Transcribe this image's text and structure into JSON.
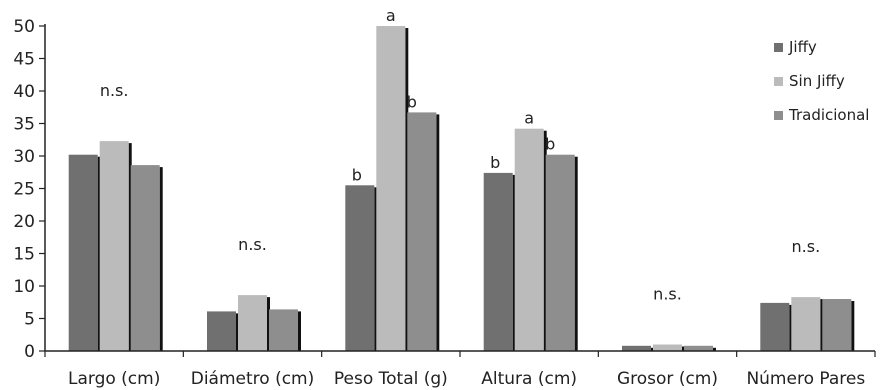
{
  "chart_data": {
    "type": "bar",
    "categories": [
      "Largo (cm)",
      "Diámetro (cm)",
      "Peso Total (g)",
      "Altura (cm)",
      "Grosor (cm)",
      "Número Pares"
    ],
    "series": [
      {
        "name": "Jiffy",
        "values": [
          30.2,
          6.1,
          25.5,
          27.4,
          0.8,
          7.4
        ],
        "color": "#707070"
      },
      {
        "name": "Sin Jiffy",
        "values": [
          32.3,
          8.6,
          50.0,
          34.2,
          1.0,
          8.3
        ],
        "color": "#bbbbbb"
      },
      {
        "name": "Tradicional",
        "values": [
          28.6,
          6.4,
          36.7,
          30.2,
          0.8,
          8.0
        ],
        "color": "#8e8e8e"
      }
    ],
    "annotations": [
      {
        "category": 0,
        "text": "n.s."
      },
      {
        "category": 1,
        "text": "n.s."
      },
      {
        "category": 2,
        "series": 0,
        "text": "b"
      },
      {
        "category": 2,
        "series": 1,
        "text": "a"
      },
      {
        "category": 2,
        "series": 2,
        "text": "b"
      },
      {
        "category": 3,
        "series": 0,
        "text": "b"
      },
      {
        "category": 3,
        "series": 1,
        "text": "a"
      },
      {
        "category": 3,
        "series": 2,
        "text": "b"
      },
      {
        "category": 4,
        "text": "n.s."
      },
      {
        "category": 5,
        "text": "n.s."
      }
    ],
    "title": "",
    "xlabel": "",
    "ylabel": "",
    "ylim": [
      0,
      50
    ],
    "yticks": [
      0,
      5,
      10,
      15,
      20,
      25,
      30,
      35,
      40,
      45,
      50
    ],
    "grid": false,
    "legend_position": "top-right"
  }
}
